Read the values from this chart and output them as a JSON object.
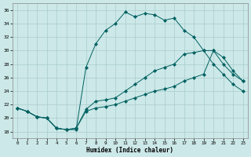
{
  "xlabel": "Humidex (Indice chaleur)",
  "bg_color": "#cce8e8",
  "grid_color": "#aacccc",
  "line_color": "#006060",
  "xlim": [
    -0.5,
    23.5
  ],
  "ylim": [
    17,
    37
  ],
  "xticks": [
    0,
    1,
    2,
    3,
    4,
    5,
    6,
    7,
    8,
    9,
    10,
    11,
    12,
    13,
    14,
    15,
    16,
    17,
    18,
    19,
    20,
    21,
    22,
    23
  ],
  "yticks": [
    18,
    20,
    22,
    24,
    26,
    28,
    30,
    32,
    34,
    36
  ],
  "line1_x": [
    0,
    1,
    2,
    3,
    4,
    5,
    6,
    7,
    8,
    9,
    10,
    11,
    12,
    13,
    14,
    15,
    16,
    17,
    18,
    19,
    20,
    21,
    22,
    23
  ],
  "line1_y": [
    21.5,
    21.0,
    20.2,
    20.0,
    18.5,
    18.3,
    18.3,
    27.5,
    31.0,
    33.0,
    34.0,
    35.7,
    35.0,
    35.5,
    35.3,
    34.5,
    34.8,
    33.0,
    32.0,
    30.0,
    28.0,
    26.5,
    25.0,
    24.0
  ],
  "line2_x": [
    0,
    1,
    2,
    3,
    4,
    5,
    6,
    7,
    8,
    9,
    10,
    11,
    12,
    13,
    14,
    15,
    16,
    17,
    18,
    19,
    20,
    21,
    22,
    23
  ],
  "line2_y": [
    21.5,
    21.0,
    20.2,
    20.0,
    18.5,
    18.3,
    18.5,
    21.3,
    22.5,
    22.7,
    23.0,
    24.0,
    25.0,
    26.0,
    27.0,
    27.5,
    28.0,
    29.5,
    29.7,
    30.0,
    30.0,
    29.0,
    27.0,
    25.5
  ],
  "line3_x": [
    0,
    1,
    2,
    3,
    4,
    5,
    6,
    7,
    8,
    9,
    10,
    11,
    12,
    13,
    14,
    15,
    16,
    17,
    18,
    19,
    20,
    21,
    22,
    23
  ],
  "line3_y": [
    21.5,
    21.0,
    20.2,
    20.0,
    18.5,
    18.3,
    18.5,
    21.0,
    21.5,
    21.7,
    22.0,
    22.5,
    23.0,
    23.5,
    24.0,
    24.3,
    24.7,
    25.5,
    26.0,
    26.5,
    30.0,
    28.0,
    26.5,
    25.5
  ]
}
